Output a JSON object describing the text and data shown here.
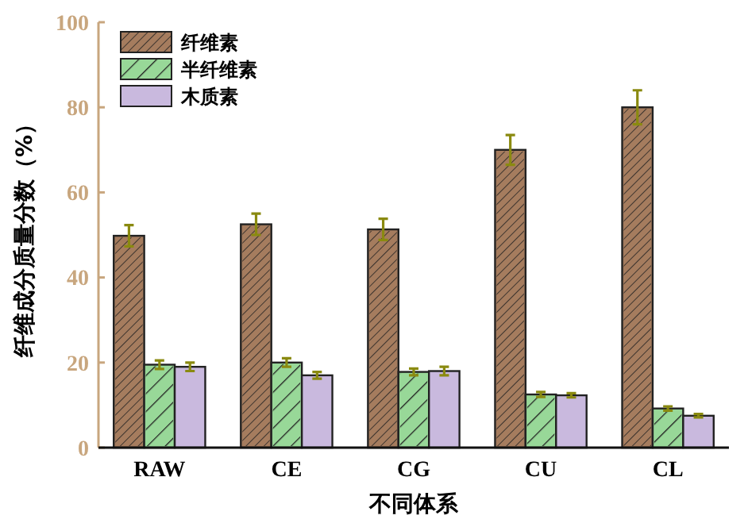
{
  "chart_data": {
    "type": "bar",
    "xlabel": "不同体系",
    "ylabel": "纤维成分质量分数（%）",
    "categories": [
      "RAW",
      "CE",
      "CG",
      "CU",
      "CL"
    ],
    "series": [
      {
        "name": "纤维素",
        "color": "#a57c5e",
        "values": [
          49.8,
          52.5,
          51.3,
          70,
          80
        ],
        "errors": [
          2.5,
          2.5,
          2.5,
          3.5,
          4
        ]
      },
      {
        "name": "半纤维素",
        "color": "#98d898",
        "values": [
          19.5,
          20,
          17.8,
          12.5,
          9.2
        ],
        "errors": [
          1,
          1,
          0.8,
          0.6,
          0.5
        ]
      },
      {
        "name": "木质素",
        "color": "#c9b9de",
        "values": [
          19,
          17,
          18,
          12.3,
          7.5
        ],
        "errors": [
          1,
          0.8,
          1,
          0.5,
          0.4
        ]
      }
    ],
    "ylim": [
      0,
      100
    ],
    "yticks": [
      0,
      20,
      40,
      60,
      80,
      100
    ],
    "legend": "top left",
    "grid": false
  }
}
